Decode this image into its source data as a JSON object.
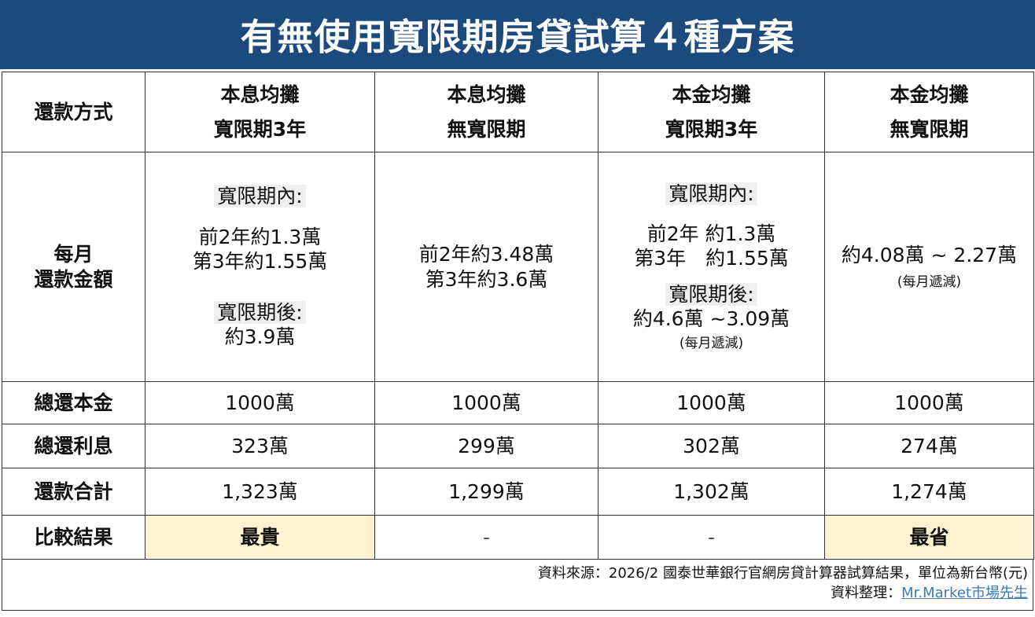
{
  "title": "有無使用寬限期房貸試算４種方案",
  "table": {
    "corner": "還款方式",
    "columns": [
      {
        "line1": "本息均攤",
        "line2": "寬限期3年"
      },
      {
        "line1": "本息均攤",
        "line2": "無寬限期"
      },
      {
        "line1": "本金均攤",
        "line2": "寬限期3年"
      },
      {
        "line1": "本金均攤",
        "line2": "無寬限期"
      }
    ],
    "monthly": {
      "label_line1": "每月",
      "label_line2": "還款金額",
      "c1": {
        "grace_label": "寬限期內:",
        "line1": "前2年約1.3萬",
        "line2": "第3年約1.55萬",
        "after_label": "寬限期後:",
        "after_value": "約3.9萬"
      },
      "c2": {
        "line1": "前2年約3.48萬",
        "line2": "第3年約3.6萬"
      },
      "c3": {
        "grace_label": "寬限期內:",
        "line1": "前2年 約1.3萬",
        "line2": "第3年　約1.55萬",
        "after_label": "寬限期後:",
        "after_value": "約4.6萬 ~3.09萬",
        "note": "(每月遞減)"
      },
      "c4": {
        "line1": "約4.08萬 ~ 2.27萬",
        "note": "(每月遞減)"
      }
    },
    "rows": [
      {
        "label": "總還本金",
        "values": [
          "1000萬",
          "1000萬",
          "1000萬",
          "1000萬"
        ]
      },
      {
        "label": "總還利息",
        "values": [
          "323萬",
          "299萬",
          "302萬",
          "274萬"
        ]
      },
      {
        "label": "還款合計",
        "values": [
          "1,323萬",
          "1,299萬",
          "1,302萬",
          "1,274萬"
        ]
      }
    ],
    "compare": {
      "label": "比較結果",
      "values": [
        "最貴",
        "-",
        "-",
        "最省"
      ]
    }
  },
  "footer": {
    "source": "資料來源：2026/2 國泰世華銀行官網房貸計算器試算結果，單位為新台幣(元)",
    "compiled_label": "資料整理：",
    "compiled_link": "Mr.Market市場先生"
  },
  "colors": {
    "title_bg": "#1d4a7c",
    "highlight": "#fdf2cf",
    "link": "#3c7ab0"
  }
}
